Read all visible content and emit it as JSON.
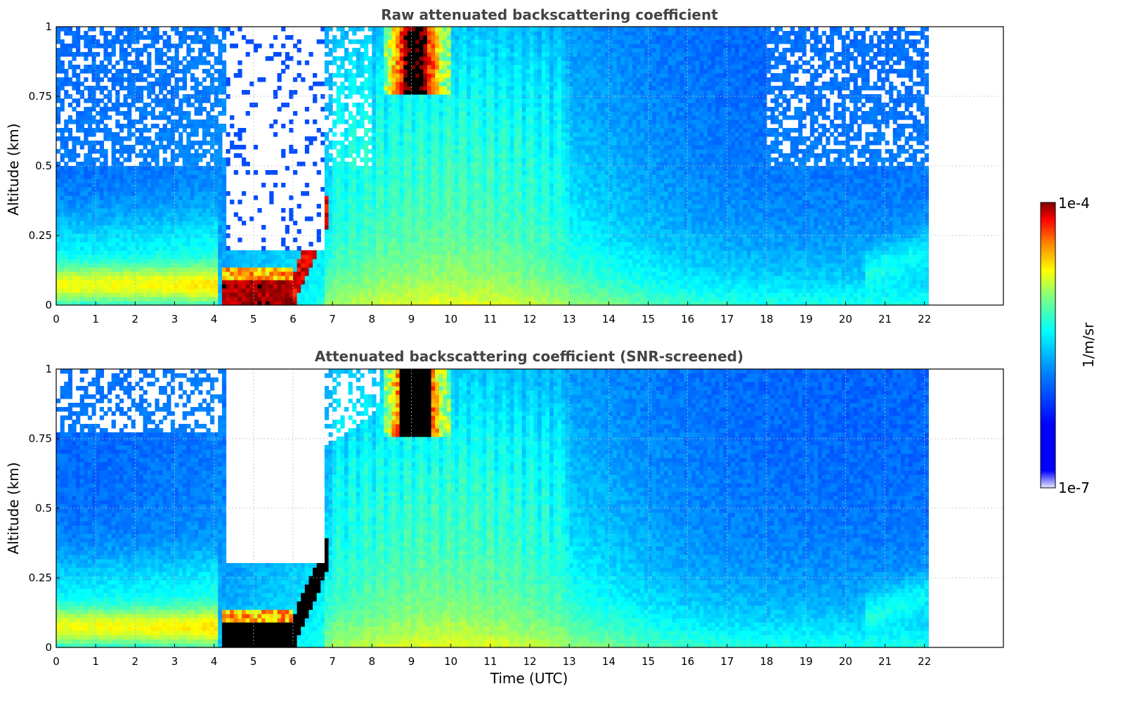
{
  "colors": {
    "jet": [
      "#00008f",
      "#0000ff",
      "#007fff",
      "#00ffff",
      "#7fff7f",
      "#ffff00",
      "#ff7f00",
      "#ff0000",
      "#7f0000"
    ],
    "title": "#444444",
    "grid": "#bbbbbb"
  },
  "chart_data": [
    {
      "type": "heatmap",
      "title": "Raw attenuated backscattering coefficient",
      "xlabel": "",
      "ylabel": "Altitude (km)",
      "xlim": [
        0,
        24
      ],
      "ylim": [
        0,
        1
      ],
      "data_extent_x": [
        0,
        22.1
      ],
      "x_ticks": [
        "0",
        "1",
        "2",
        "3",
        "4",
        "5",
        "6",
        "7",
        "8",
        "9",
        "10",
        "11",
        "12",
        "13",
        "14",
        "15",
        "16",
        "17",
        "18",
        "19",
        "20",
        "21",
        "22"
      ],
      "y_ticks": [
        "0",
        "0.25",
        "0.5",
        "0.75",
        "1"
      ],
      "grid": true,
      "color_scale": "jet-log",
      "features": [
        {
          "kind": "dense_aerosol_layer",
          "x": [
            4.2,
            6.0
          ],
          "y": [
            0,
            0.09
          ],
          "level": "max"
        },
        {
          "kind": "rising_layer",
          "x": [
            6.0,
            6.8
          ],
          "y": [
            0.05,
            0.32
          ],
          "level": "high"
        },
        {
          "kind": "no_signal_gap",
          "x": [
            4.3,
            6.8
          ],
          "y": [
            0.2,
            1
          ],
          "level": "empty"
        },
        {
          "kind": "cloud_aloft",
          "x": [
            8.3,
            10.0
          ],
          "y": [
            0.75,
            1
          ],
          "level": "high"
        }
      ]
    },
    {
      "type": "heatmap",
      "title": "Attenuated backscattering coefficient (SNR-screened)",
      "xlabel": "Time (UTC)",
      "ylabel": "Altitude (km)",
      "xlim": [
        0,
        24
      ],
      "ylim": [
        0,
        1
      ],
      "data_extent_x": [
        0,
        22.1
      ],
      "x_ticks": [
        "0",
        "1",
        "2",
        "3",
        "4",
        "5",
        "6",
        "7",
        "8",
        "9",
        "10",
        "11",
        "12",
        "13",
        "14",
        "15",
        "16",
        "17",
        "18",
        "19",
        "20",
        "21",
        "22"
      ],
      "y_ticks": [
        "0",
        "0.25",
        "0.5",
        "0.75",
        "1"
      ],
      "grid": true,
      "color_scale": "jet-log",
      "features": [
        {
          "kind": "dense_aerosol_layer",
          "x": [
            4.2,
            6.0
          ],
          "y": [
            0,
            0.09
          ],
          "level": "saturated"
        },
        {
          "kind": "screened_out",
          "x": [
            4.0,
            6.8
          ],
          "y": [
            0.3,
            1
          ],
          "level": "empty"
        },
        {
          "kind": "cloud_aloft",
          "x": [
            8.3,
            10.0
          ],
          "y": [
            0.75,
            1
          ],
          "level": "saturated"
        }
      ]
    }
  ],
  "colorbar": {
    "label": "1/m/sr",
    "min_label": "1e-7",
    "max_label": "1e-4",
    "scale": "log"
  }
}
